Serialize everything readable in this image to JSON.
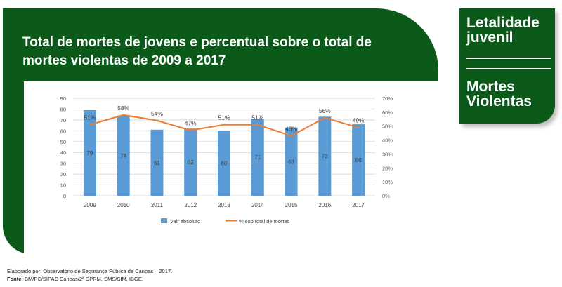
{
  "panel": {
    "title_line1": "Total de mortes de jovens e percentual sobre o total de",
    "title_line2": "mortes violentas de 2009 a 2017"
  },
  "side": {
    "title1_line1": "Letalidade",
    "title1_line2": "juvenil",
    "title2_line1": "Mortes",
    "title2_line2": "Violentas"
  },
  "footer": {
    "line1": "Elaborado por: Observatório de Segurança Pública de Canoas – 2017.",
    "line2_label": "Fonte:",
    "line2_text": "BM/PC/SIPAC Canoas/2ª DPRM, SMS/SIM, IBGE."
  },
  "colors": {
    "panel": "#0b5a1a",
    "bar": "#5b9bd5",
    "line": "#ed7d31"
  },
  "chart_data": {
    "type": "bar",
    "categories": [
      "2009",
      "2010",
      "2011",
      "2012",
      "2013",
      "2014",
      "2015",
      "2016",
      "2017"
    ],
    "series": [
      {
        "name": "Valr absoluto",
        "type": "bar",
        "axis": "left",
        "values": [
          79,
          74,
          61,
          62,
          60,
          71,
          63,
          73,
          66
        ]
      },
      {
        "name": "% sob total de mortes",
        "type": "line",
        "axis": "right",
        "values": [
          51,
          58,
          54,
          47,
          51,
          51,
          43,
          56,
          49
        ],
        "labels": [
          "51%",
          "58%",
          "54%",
          "47%",
          "51%",
          "51%",
          "43%",
          "56%",
          "49%"
        ]
      }
    ],
    "ylim_left": [
      0,
      90
    ],
    "yticks_left": [
      "0",
      "10",
      "20",
      "30",
      "40",
      "50",
      "60",
      "70",
      "80",
      "90"
    ],
    "ylim_right": [
      0,
      70
    ],
    "yticks_right": [
      "0%",
      "10%",
      "20%",
      "30%",
      "40%",
      "50%",
      "60%",
      "70%"
    ],
    "legend": "bottom",
    "grid": true
  }
}
